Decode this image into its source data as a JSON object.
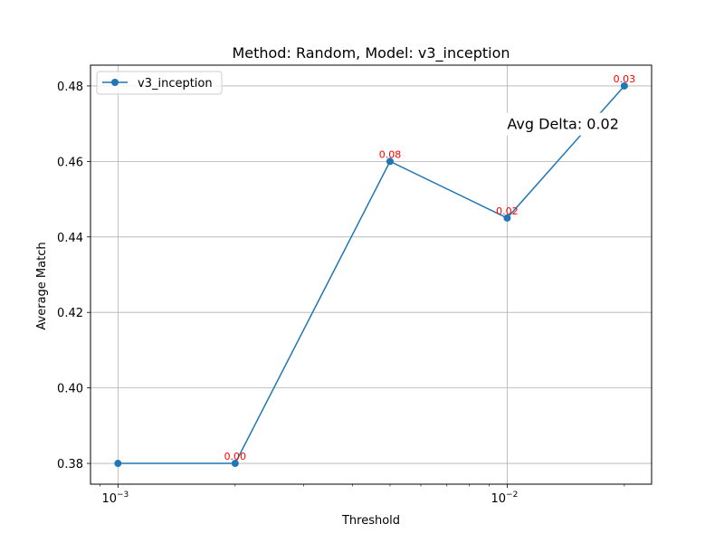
{
  "chart_data": {
    "type": "line",
    "title": "Method: Random, Model: v3_inception",
    "xlabel": "Threshold",
    "ylabel": "Average Match",
    "xscale": "log",
    "xlim": [
      0.00085,
      0.0235
    ],
    "ylim": [
      0.3745,
      0.4855
    ],
    "grid": true,
    "legend_position": "top-left",
    "x_ticks": [
      {
        "value": 0.001,
        "base": "10",
        "exp": "−3"
      },
      {
        "value": 0.01,
        "base": "10",
        "exp": "−2"
      }
    ],
    "y_ticks": [
      {
        "value": 0.38,
        "label": "0.38"
      },
      {
        "value": 0.4,
        "label": "0.40"
      },
      {
        "value": 0.42,
        "label": "0.42"
      },
      {
        "value": 0.44,
        "label": "0.44"
      },
      {
        "value": 0.46,
        "label": "0.46"
      },
      {
        "value": 0.48,
        "label": "0.48"
      }
    ],
    "series": [
      {
        "name": "v3_inception",
        "color": "#1f77b4",
        "x": [
          0.001,
          0.002,
          0.005,
          0.01,
          0.02
        ],
        "y": [
          0.38,
          0.38,
          0.46,
          0.445,
          0.48
        ],
        "point_labels": [
          "",
          "0.00",
          "0.08",
          "0.02",
          "0.03"
        ]
      }
    ],
    "annotation": {
      "text": "Avg Delta: 0.02",
      "x": 0.01,
      "y": 0.47
    }
  }
}
